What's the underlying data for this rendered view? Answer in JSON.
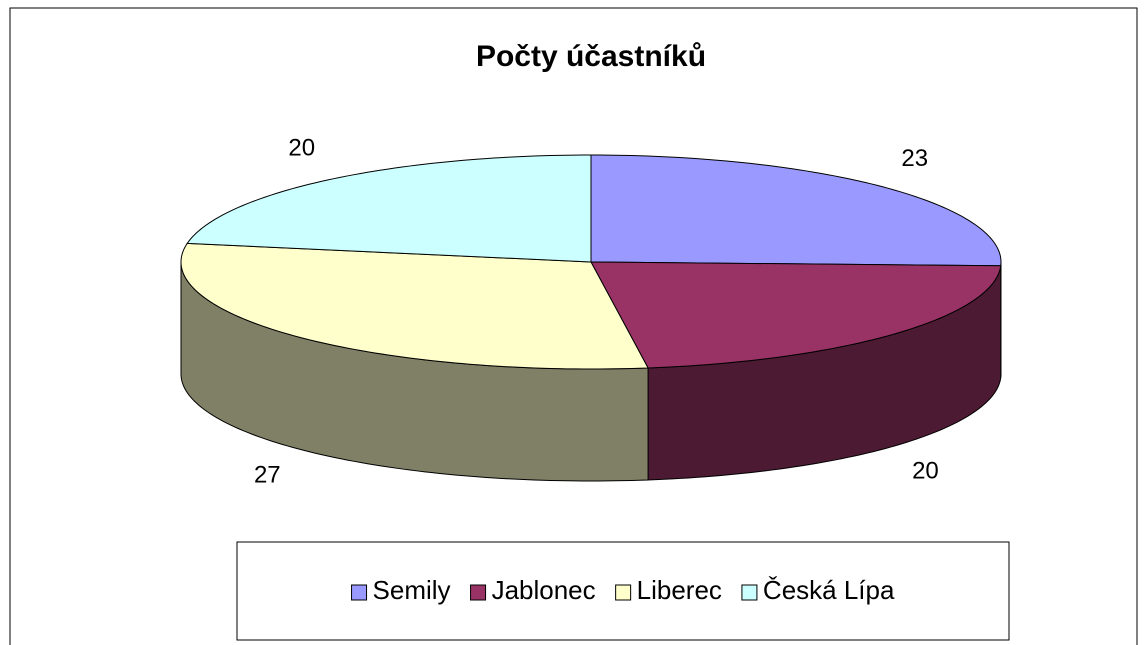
{
  "chart_data": {
    "type": "pie3d",
    "title": "Počty účastníků",
    "categories": [
      "Semily",
      "Jablonec",
      "Liberec",
      "Česká Lípa"
    ],
    "values": [
      23,
      20,
      27,
      20
    ],
    "colors": [
      "#9999ff",
      "#993366",
      "#ffffcc",
      "#ccffff"
    ],
    "legend": "bottom"
  }
}
